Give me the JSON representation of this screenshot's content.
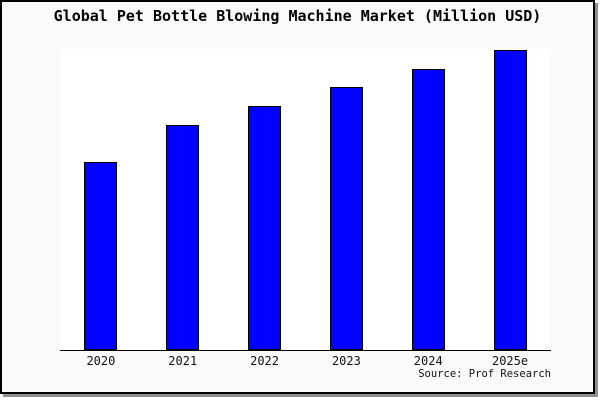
{
  "window": {
    "background": "#fafafa",
    "plot_background": "#ffffff",
    "border_color": "#000000",
    "shadow_color": "#8f8f8f"
  },
  "chart_data": {
    "type": "bar",
    "title": "Global Pet Bottle Blowing Machine Market (Million USD)",
    "categories": [
      "2020",
      "2021",
      "2022",
      "2023",
      "2024",
      "2025e"
    ],
    "values": [
      62.7,
      75.0,
      81.3,
      87.7,
      93.7,
      100.0
    ],
    "note": "no y-axis or data labels shown; values estimated relative to tallest bar (2025e = 100)",
    "xlabel": "",
    "ylabel": "",
    "ylim": [
      0,
      100
    ],
    "grid": false,
    "legend": false,
    "bar_color": "#0000ff",
    "bar_edge_color": "#000000",
    "source_note": "Source: Prof Research"
  }
}
